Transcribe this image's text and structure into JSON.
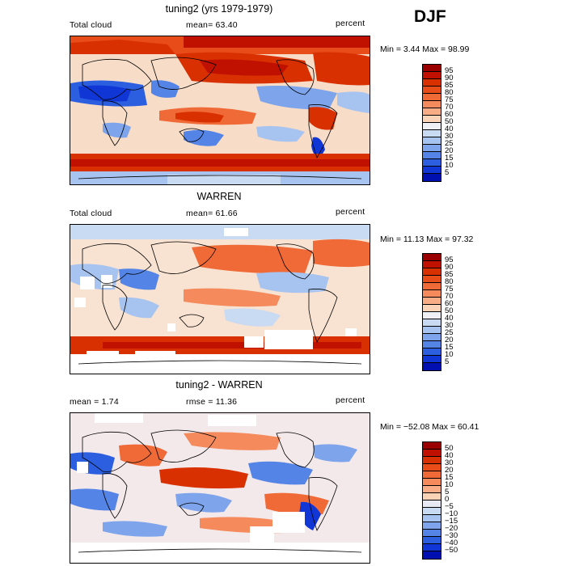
{
  "season": "DJF",
  "panels": [
    {
      "title": "tuning2 (yrs 1979-1979)",
      "left_label": "Total cloud",
      "center_label": "mean=  63.40",
      "right_label": "percent",
      "minmax": "Min =   3.44 Max =  98.99",
      "scale": [
        "95",
        "90",
        "85",
        "80",
        "75",
        "70",
        "60",
        "50",
        "40",
        "30",
        "25",
        "20",
        "15",
        "10",
        "5"
      ],
      "colors": [
        "#9b0000",
        "#c01000",
        "#d93000",
        "#e84c18",
        "#f06a38",
        "#f58a5c",
        "#f8ad86",
        "#fbd3b7",
        "#eef0f6",
        "#c9daf3",
        "#a7c3f0",
        "#7ea5eb",
        "#5485e6",
        "#2c5ee0",
        "#1036d6",
        "#0010b0"
      ]
    },
    {
      "title": "WARREN",
      "left_label": "Total cloud",
      "center_label": "mean=  61.66",
      "right_label": "percent",
      "minmax": "Min =  11.13 Max =  97.32",
      "scale": [
        "95",
        "90",
        "85",
        "80",
        "75",
        "70",
        "60",
        "50",
        "40",
        "30",
        "25",
        "20",
        "15",
        "10",
        "5"
      ],
      "colors": [
        "#9b0000",
        "#c01000",
        "#d93000",
        "#e84c18",
        "#f06a38",
        "#f58a5c",
        "#f8ad86",
        "#fbd3b7",
        "#eef0f6",
        "#c9daf3",
        "#a7c3f0",
        "#7ea5eb",
        "#5485e6",
        "#2c5ee0",
        "#1036d6",
        "#0010b0"
      ]
    },
    {
      "title": "tuning2 - WARREN",
      "left_label": "mean =   1.74",
      "center_label": "rmse =  11.36",
      "right_label": "percent",
      "minmax": "Min = −52.08 Max =  60.41",
      "scale": [
        "50",
        "40",
        "30",
        "20",
        "15",
        "10",
        "5",
        "0",
        "−5",
        "−10",
        "−15",
        "−20",
        "−30",
        "−40",
        "−50"
      ],
      "colors": [
        "#9b0000",
        "#c01000",
        "#d93000",
        "#e84c18",
        "#f06a38",
        "#f58a5c",
        "#f8ad86",
        "#fbd3b7",
        "#e7eaf4",
        "#c9daf3",
        "#a7c3f0",
        "#7ea5eb",
        "#5485e6",
        "#2c5ee0",
        "#1036d6",
        "#0010b0"
      ]
    }
  ]
}
